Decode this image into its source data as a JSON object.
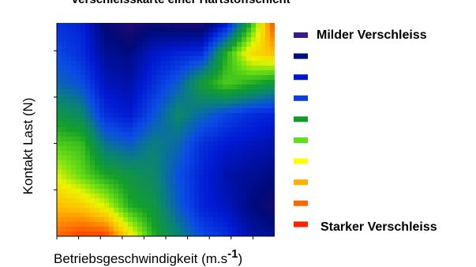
{
  "chart_data": {
    "type": "heatmap",
    "title": "Verschleisskarte einer Hartstoffschicht",
    "xlabel": "Betriebsgeschwindigkeit (m.s",
    "xlabel_superscript": "-1",
    "xlabel_suffix": ")",
    "ylabel": "Kontakt Last (N)",
    "legend": {
      "top_label": "Milder Verschleiss",
      "bottom_label": "Starker Verschleiss",
      "colors": [
        "#3a1a8a",
        "#000f7a",
        "#0016cf",
        "#0a40d8",
        "#119a2a",
        "#5ee11a",
        "#ffff00",
        "#ffb000",
        "#ff6a00",
        "#ff2000"
      ]
    },
    "wear_grid": {
      "rows_top_to_bottom": [
        [
          2.0,
          1.8,
          0.6,
          0.2,
          0.5,
          0.3,
          0.2,
          1.5,
          4.5,
          8.5
        ],
        [
          2.5,
          2.0,
          1.0,
          0.8,
          1.5,
          1.8,
          2.0,
          4.5,
          6.5,
          7.0
        ],
        [
          3.0,
          2.6,
          1.4,
          1.2,
          2.0,
          2.8,
          4.2,
          5.0,
          4.5,
          4.0
        ],
        [
          4.0,
          3.6,
          2.0,
          1.6,
          2.6,
          3.6,
          3.0,
          2.4,
          2.0,
          1.8
        ],
        [
          5.0,
          4.8,
          3.2,
          2.8,
          3.4,
          3.0,
          2.0,
          1.6,
          1.4,
          1.2
        ],
        [
          6.0,
          5.2,
          4.4,
          4.0,
          3.6,
          2.6,
          1.8,
          1.2,
          1.0,
          0.8
        ],
        [
          7.0,
          6.8,
          6.0,
          4.5,
          4.0,
          2.8,
          1.8,
          1.4,
          0.8,
          0.4
        ],
        [
          8.0,
          8.5,
          8.5,
          6.5,
          4.5,
          3.5,
          2.5,
          2.0,
          1.2,
          1.0
        ]
      ],
      "scale_min": 0,
      "scale_max": 9
    },
    "x_ticks": 10,
    "y_ticks": 4,
    "grid": false
  }
}
